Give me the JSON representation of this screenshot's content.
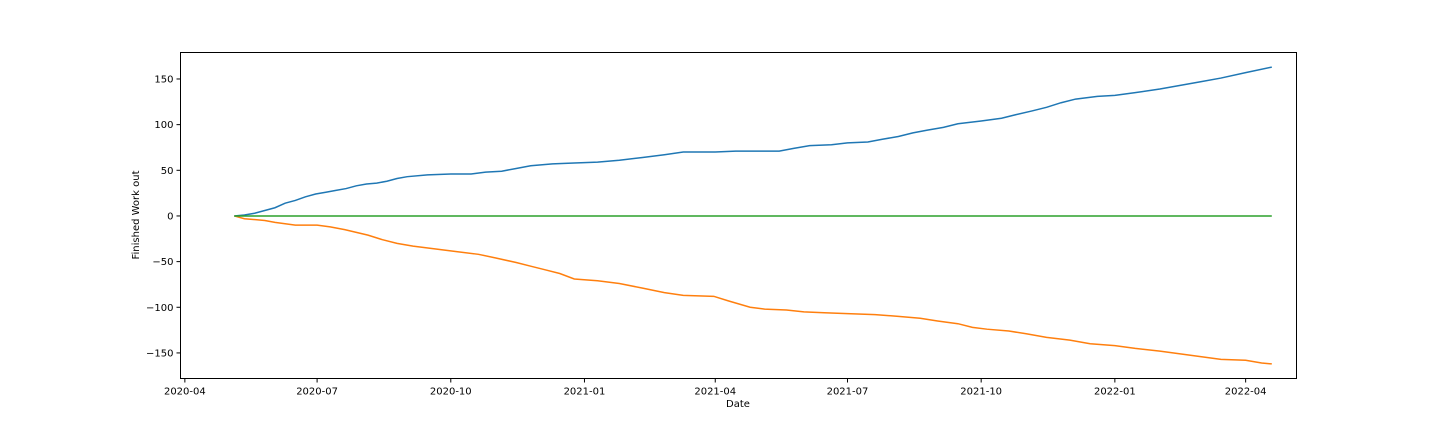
{
  "chart_data": {
    "type": "line",
    "xlabel": "Date",
    "ylabel": "Finished Work out",
    "xlim": [
      "2020-03-29",
      "2022-05-06"
    ],
    "ylim": [
      -178,
      179
    ],
    "grid": false,
    "legend": null,
    "x_ticks": [
      "2020-04",
      "2020-07",
      "2020-10",
      "2021-01",
      "2021-04",
      "2021-07",
      "2021-10",
      "2022-01",
      "2022-04"
    ],
    "y_ticks": [
      150,
      100,
      50,
      0,
      -50,
      -100,
      -150
    ],
    "series": [
      {
        "color": "#1f77b4",
        "points": [
          [
            "2020-05-05",
            0
          ],
          [
            "2020-05-12",
            1
          ],
          [
            "2020-05-19",
            3
          ],
          [
            "2020-05-26",
            6
          ],
          [
            "2020-06-02",
            9
          ],
          [
            "2020-06-09",
            14
          ],
          [
            "2020-06-16",
            17
          ],
          [
            "2020-06-23",
            21
          ],
          [
            "2020-06-30",
            24
          ],
          [
            "2020-07-07",
            26
          ],
          [
            "2020-07-14",
            28
          ],
          [
            "2020-07-21",
            30
          ],
          [
            "2020-07-28",
            33
          ],
          [
            "2020-08-04",
            35
          ],
          [
            "2020-08-11",
            36
          ],
          [
            "2020-08-18",
            38
          ],
          [
            "2020-08-25",
            41
          ],
          [
            "2020-09-01",
            43
          ],
          [
            "2020-09-15",
            45
          ],
          [
            "2020-10-01",
            46
          ],
          [
            "2020-10-15",
            46
          ],
          [
            "2020-10-25",
            48
          ],
          [
            "2020-11-05",
            49
          ],
          [
            "2020-11-15",
            52
          ],
          [
            "2020-11-25",
            55
          ],
          [
            "2020-12-10",
            57
          ],
          [
            "2020-12-25",
            58
          ],
          [
            "2021-01-10",
            59
          ],
          [
            "2021-01-25",
            61
          ],
          [
            "2021-02-10",
            64
          ],
          [
            "2021-02-25",
            67
          ],
          [
            "2021-03-10",
            70
          ],
          [
            "2021-04-01",
            70
          ],
          [
            "2021-04-15",
            71
          ],
          [
            "2021-05-01",
            71
          ],
          [
            "2021-05-15",
            71
          ],
          [
            "2021-05-25",
            74
          ],
          [
            "2021-06-05",
            77
          ],
          [
            "2021-06-20",
            78
          ],
          [
            "2021-07-01",
            80
          ],
          [
            "2021-07-15",
            81
          ],
          [
            "2021-07-25",
            84
          ],
          [
            "2021-08-05",
            87
          ],
          [
            "2021-08-15",
            91
          ],
          [
            "2021-08-25",
            94
          ],
          [
            "2021-09-05",
            97
          ],
          [
            "2021-09-15",
            101
          ],
          [
            "2021-10-01",
            104
          ],
          [
            "2021-10-15",
            107
          ],
          [
            "2021-10-25",
            111
          ],
          [
            "2021-11-05",
            115
          ],
          [
            "2021-11-15",
            119
          ],
          [
            "2021-11-25",
            124
          ],
          [
            "2021-12-05",
            128
          ],
          [
            "2021-12-20",
            131
          ],
          [
            "2022-01-01",
            132
          ],
          [
            "2022-01-15",
            135
          ],
          [
            "2022-02-01",
            139
          ],
          [
            "2022-02-15",
            143
          ],
          [
            "2022-03-01",
            147
          ],
          [
            "2022-03-15",
            151
          ],
          [
            "2022-04-01",
            157
          ],
          [
            "2022-04-19",
            163
          ]
        ]
      },
      {
        "color": "#ff7f0e",
        "points": [
          [
            "2020-05-05",
            0
          ],
          [
            "2020-05-12",
            -3
          ],
          [
            "2020-05-26",
            -5
          ],
          [
            "2020-06-02",
            -7
          ],
          [
            "2020-06-16",
            -10
          ],
          [
            "2020-07-01",
            -10
          ],
          [
            "2020-07-10",
            -12
          ],
          [
            "2020-07-20",
            -15
          ],
          [
            "2020-07-28",
            -18
          ],
          [
            "2020-08-05",
            -21
          ],
          [
            "2020-08-15",
            -26
          ],
          [
            "2020-08-25",
            -30
          ],
          [
            "2020-09-05",
            -33
          ],
          [
            "2020-09-20",
            -36
          ],
          [
            "2020-10-05",
            -39
          ],
          [
            "2020-10-20",
            -42
          ],
          [
            "2020-11-01",
            -46
          ],
          [
            "2020-11-15",
            -51
          ],
          [
            "2020-11-25",
            -55
          ],
          [
            "2020-12-05",
            -59
          ],
          [
            "2020-12-15",
            -63
          ],
          [
            "2020-12-25",
            -69
          ],
          [
            "2021-01-10",
            -71
          ],
          [
            "2021-01-25",
            -74
          ],
          [
            "2021-02-10",
            -79
          ],
          [
            "2021-02-25",
            -84
          ],
          [
            "2021-03-10",
            -87
          ],
          [
            "2021-03-31",
            -88
          ],
          [
            "2021-04-10",
            -93
          ],
          [
            "2021-04-25",
            -100
          ],
          [
            "2021-05-05",
            -102
          ],
          [
            "2021-05-20",
            -103
          ],
          [
            "2021-06-01",
            -105
          ],
          [
            "2021-06-15",
            -106
          ],
          [
            "2021-07-01",
            -107
          ],
          [
            "2021-07-20",
            -108
          ],
          [
            "2021-08-05",
            -110
          ],
          [
            "2021-08-20",
            -112
          ],
          [
            "2021-09-01",
            -115
          ],
          [
            "2021-09-15",
            -118
          ],
          [
            "2021-09-25",
            -122
          ],
          [
            "2021-10-05",
            -124
          ],
          [
            "2021-10-20",
            -126
          ],
          [
            "2021-11-01",
            -129
          ],
          [
            "2021-11-15",
            -133
          ],
          [
            "2021-12-01",
            -136
          ],
          [
            "2021-12-15",
            -140
          ],
          [
            "2022-01-01",
            -142
          ],
          [
            "2022-01-15",
            -145
          ],
          [
            "2022-02-01",
            -148
          ],
          [
            "2022-02-15",
            -151
          ],
          [
            "2022-03-01",
            -154
          ],
          [
            "2022-03-15",
            -157
          ],
          [
            "2022-04-01",
            -158
          ],
          [
            "2022-04-12",
            -161
          ],
          [
            "2022-04-19",
            -162
          ]
        ]
      },
      {
        "color": "#2ca02c",
        "points": [
          [
            "2020-05-05",
            0
          ],
          [
            "2022-04-19",
            0
          ]
        ]
      }
    ]
  }
}
